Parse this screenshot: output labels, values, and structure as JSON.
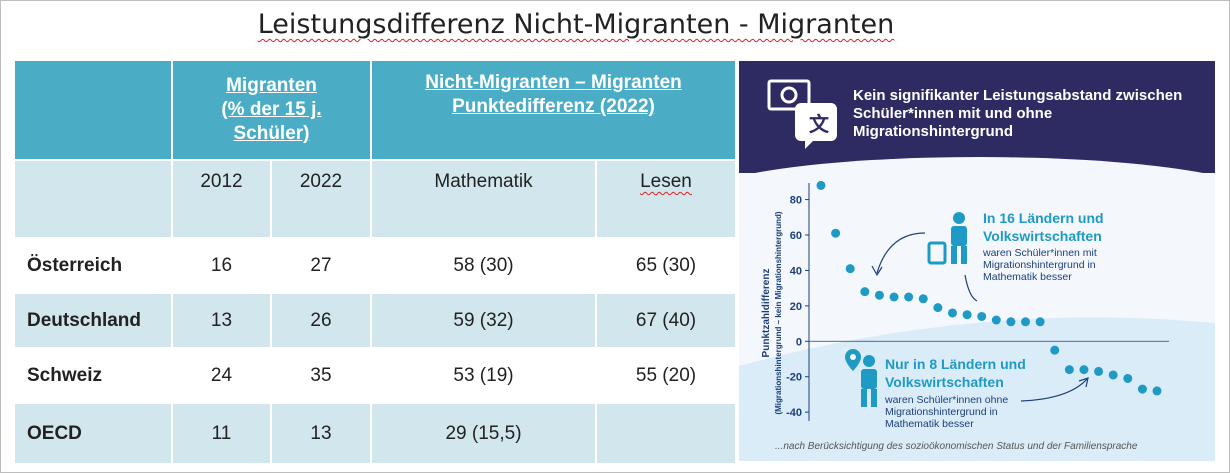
{
  "title": "Leistungsdifferenz  Nicht-Migranten - Migranten",
  "table": {
    "header": {
      "migranten": [
        "Migranten",
        "(% der 15 j.",
        "Schüler)"
      ],
      "differenz": [
        "Nicht-Migranten  –  Migranten",
        "Punktedifferenz (2022)"
      ]
    },
    "subheader": {
      "y2012": "2012",
      "y2022": "2022",
      "math": "Mathematik",
      "read": "Lesen"
    },
    "rows": [
      {
        "country": "Österreich",
        "y2012": "16",
        "y2022": "27",
        "math": "58  (30)",
        "read": "65 (30)"
      },
      {
        "country": "Deutschland",
        "y2012": "13",
        "y2022": "26",
        "math": "59 (32)",
        "read": "67 (40)"
      },
      {
        "country": "Schweiz",
        "y2012": "24",
        "y2022": "35",
        "math": "53 (19)",
        "read": "55 (20)"
      },
      {
        "country": "OECD",
        "y2012": "11",
        "y2022": "13",
        "math": "29 (15,5)",
        "read": ""
      }
    ],
    "colors": {
      "header": "#4bacc6",
      "band": "#d2e6ee"
    }
  },
  "infographic": {
    "banner": "Kein signifikanter Leistungsabstand zwischen Schüler*innen mit und ohne Migrationshintergrund",
    "callout_top_bold": [
      "In 16 Ländern und",
      "Volkswirtschaften"
    ],
    "callout_top_text": [
      "waren Schüler*innen mit",
      "Migrationshintergrund in",
      "Mathematik besser"
    ],
    "callout_bottom_bold": [
      "Nur in 8 Ländern und",
      "Volkswirtschaften"
    ],
    "callout_bottom_text": [
      "waren Schüler*innen ohne",
      "Migrationshintergrund in",
      "Mathematik besser"
    ],
    "footnote": "...nach Berücksichtigung des sozioökonomischen Status und der Familiensprache",
    "icons": [
      "money-icon",
      "translate-icon",
      "person-luggage-icon",
      "person-pin-icon"
    ],
    "colors": {
      "banner": "#2e2b63",
      "dots": "#1e9ac4",
      "text": "#1d3f79",
      "bold": "#1e9ac4"
    }
  },
  "chart_data": {
    "type": "scatter",
    "ylabel": [
      "Punktzahldifferenz",
      "(Migrationshintergrund – kein Migrationshintergrund)"
    ],
    "ylim": [
      -45,
      95
    ],
    "yticks": [
      "80",
      "60",
      "40",
      "20",
      "0",
      "-20",
      "-40"
    ],
    "ytick_values": [
      80,
      60,
      40,
      20,
      0,
      -20,
      -40
    ],
    "values": [
      88,
      61,
      41,
      28,
      26,
      25,
      25,
      24,
      19,
      16,
      15,
      14,
      12,
      11,
      11,
      11,
      -5,
      -16,
      -16,
      -17,
      -19,
      -21,
      -27,
      -28
    ]
  }
}
